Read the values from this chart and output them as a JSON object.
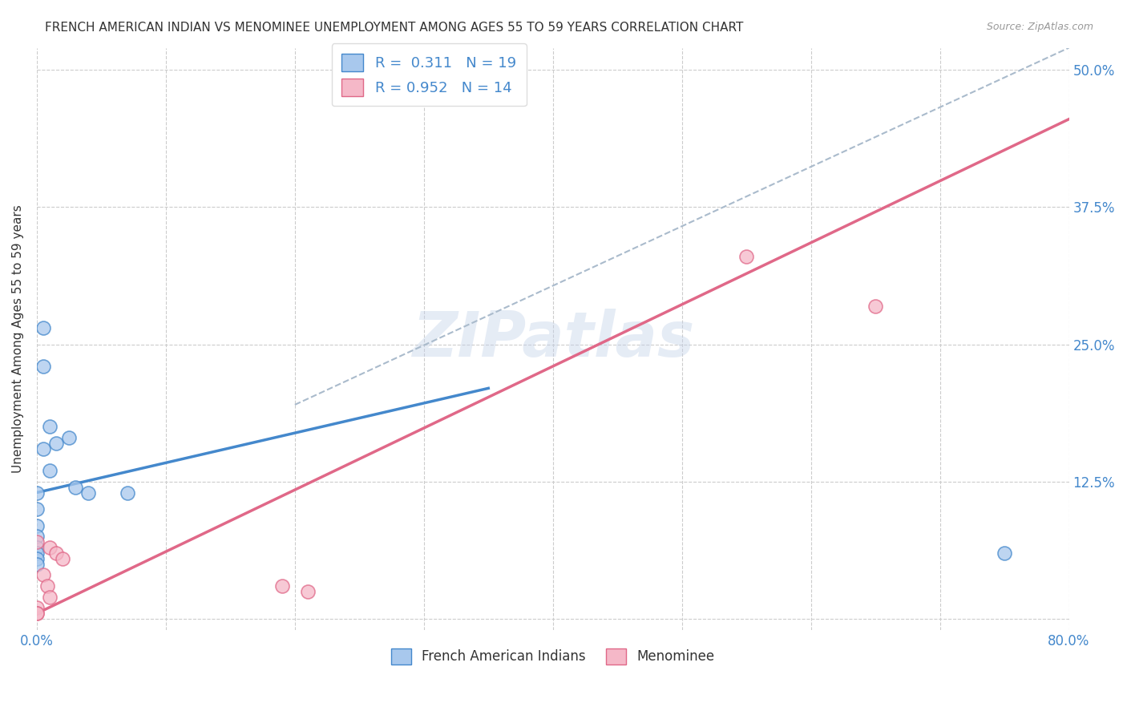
{
  "title": "FRENCH AMERICAN INDIAN VS MENOMINEE UNEMPLOYMENT AMONG AGES 55 TO 59 YEARS CORRELATION CHART",
  "source": "Source: ZipAtlas.com",
  "ylabel": "Unemployment Among Ages 55 to 59 years",
  "xlim": [
    0.0,
    0.8
  ],
  "ylim": [
    -0.01,
    0.52
  ],
  "xticks": [
    0.0,
    0.1,
    0.2,
    0.3,
    0.4,
    0.5,
    0.6,
    0.7,
    0.8
  ],
  "xticklabels": [
    "0.0%",
    "",
    "",
    "",
    "",
    "",
    "",
    "",
    "80.0%"
  ],
  "yticks": [
    0.0,
    0.125,
    0.25,
    0.375,
    0.5
  ],
  "yticklabels_right": [
    "",
    "12.5%",
    "25.0%",
    "37.5%",
    "50.0%"
  ],
  "legend_label1": "French American Indians",
  "legend_label2": "Menominee",
  "blue_scatter_x": [
    0.01,
    0.015,
    0.01,
    0.005,
    0.005,
    0.005,
    0.0,
    0.0,
    0.0,
    0.0,
    0.0,
    0.0,
    0.0,
    0.0,
    0.025,
    0.03,
    0.04,
    0.07,
    0.75
  ],
  "blue_scatter_y": [
    0.175,
    0.16,
    0.135,
    0.23,
    0.265,
    0.155,
    0.115,
    0.1,
    0.085,
    0.075,
    0.065,
    0.06,
    0.055,
    0.05,
    0.165,
    0.12,
    0.115,
    0.115,
    0.06
  ],
  "pink_scatter_x": [
    0.005,
    0.008,
    0.01,
    0.0,
    0.0,
    0.0,
    0.0,
    0.01,
    0.015,
    0.02,
    0.19,
    0.21,
    0.55,
    0.65
  ],
  "pink_scatter_y": [
    0.04,
    0.03,
    0.02,
    0.01,
    0.005,
    0.005,
    0.07,
    0.065,
    0.06,
    0.055,
    0.03,
    0.025,
    0.33,
    0.285
  ],
  "blue_line_x": [
    0.0,
    0.35
  ],
  "blue_line_y": [
    0.115,
    0.21
  ],
  "pink_line_x": [
    0.0,
    0.8
  ],
  "pink_line_y": [
    0.005,
    0.455
  ],
  "dashed_line_x": [
    0.2,
    0.8
  ],
  "dashed_line_y": [
    0.195,
    0.52
  ],
  "blue_color": "#a8c8ed",
  "pink_color": "#f5b8c8",
  "blue_line_color": "#4488cc",
  "pink_line_color": "#e06888",
  "dashed_line_color": "#aabbcc",
  "scatter_size": 150,
  "watermark": "ZIPatlas",
  "background_color": "#ffffff",
  "grid_color": "#cccccc",
  "title_color": "#333333",
  "tick_label_color": "#4488cc",
  "ylabel_color": "#333333"
}
